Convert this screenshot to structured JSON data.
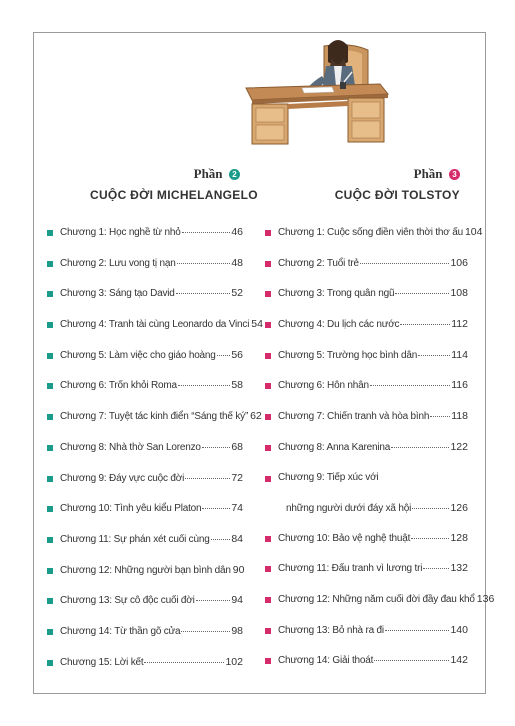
{
  "colors": {
    "teal": "#1b9b8a",
    "pink": "#d62b6a"
  },
  "part_left": {
    "label": "Phần",
    "number": "2",
    "title": "CUỘC ĐỜI MICHELANGELO"
  },
  "part_right": {
    "label": "Phần",
    "number": "3",
    "title": "CUỘC ĐỜI TOLSTOY"
  },
  "toc_left": [
    {
      "text": "Chương 1: Học nghề từ nhỏ",
      "page": "46"
    },
    {
      "text": "Chương 2: Lưu vong tị nạn",
      "page": "48"
    },
    {
      "text": "Chương 3: Sáng tạo David",
      "page": "52"
    },
    {
      "text": "Chương 4: Tranh tài cùng Leonardo da Vinci",
      "page": "54"
    },
    {
      "text": "Chương 5: Làm việc cho giáo hoàng",
      "page": "56"
    },
    {
      "text": "Chương 6: Trốn khỏi Roma",
      "page": "58"
    },
    {
      "text": "Chương 7: Tuyệt tác kinh điển “Sáng thế ký”",
      "page": "62"
    },
    {
      "text": "Chương 8: Nhà thờ San Lorenzo",
      "page": "68"
    },
    {
      "text": "Chương 9: Đáy vực cuộc đời",
      "page": "72"
    },
    {
      "text": "Chương 10: Tình yêu kiểu Platon",
      "page": "74"
    },
    {
      "text": "Chương 11: Sự phán xét cuối cùng",
      "page": "84"
    },
    {
      "text": "Chương 12: Những người bạn bình dân",
      "page": "90"
    },
    {
      "text": "Chương 13: Sự cô độc cuối đời",
      "page": "94"
    },
    {
      "text": "Chương 14: Từ thần gõ cửa",
      "page": "98"
    },
    {
      "text": "Chương 15: Lời kết",
      "page": "102"
    }
  ],
  "toc_right": [
    {
      "text": "Chương 1: Cuộc sống điền viên thời thơ ấu",
      "page": "104"
    },
    {
      "text": "Chương 2: Tuổi trẻ",
      "page": "106"
    },
    {
      "text": "Chương 3: Trong quân ngũ",
      "page": "108"
    },
    {
      "text": "Chương 4: Du lịch các nước",
      "page": "112"
    },
    {
      "text": "Chương 5: Trường học bình dân",
      "page": "114"
    },
    {
      "text": "Chương 6: Hôn nhân",
      "page": "116"
    },
    {
      "text": "Chương 7: Chiến tranh và hòa bình",
      "page": "118"
    },
    {
      "text": "Chương 8: Anna Karenina",
      "page": "122"
    },
    {
      "text": "Chương 9: Tiếp xúc với",
      "text2": "những người dưới đáy xã hội",
      "page": "126"
    },
    {
      "text": "Chương 10: Bảo vệ nghệ thuật",
      "page": "128"
    },
    {
      "text": "Chương 11: Đấu tranh vì lương tri",
      "page": "132"
    },
    {
      "text": "Chương 12: Những năm cuối đời đầy đau khổ",
      "page": "136"
    },
    {
      "text": "Chương 13: Bỏ nhà ra đi",
      "page": "140"
    },
    {
      "text": "Chương 14: Giải thoát",
      "page": "142"
    }
  ]
}
